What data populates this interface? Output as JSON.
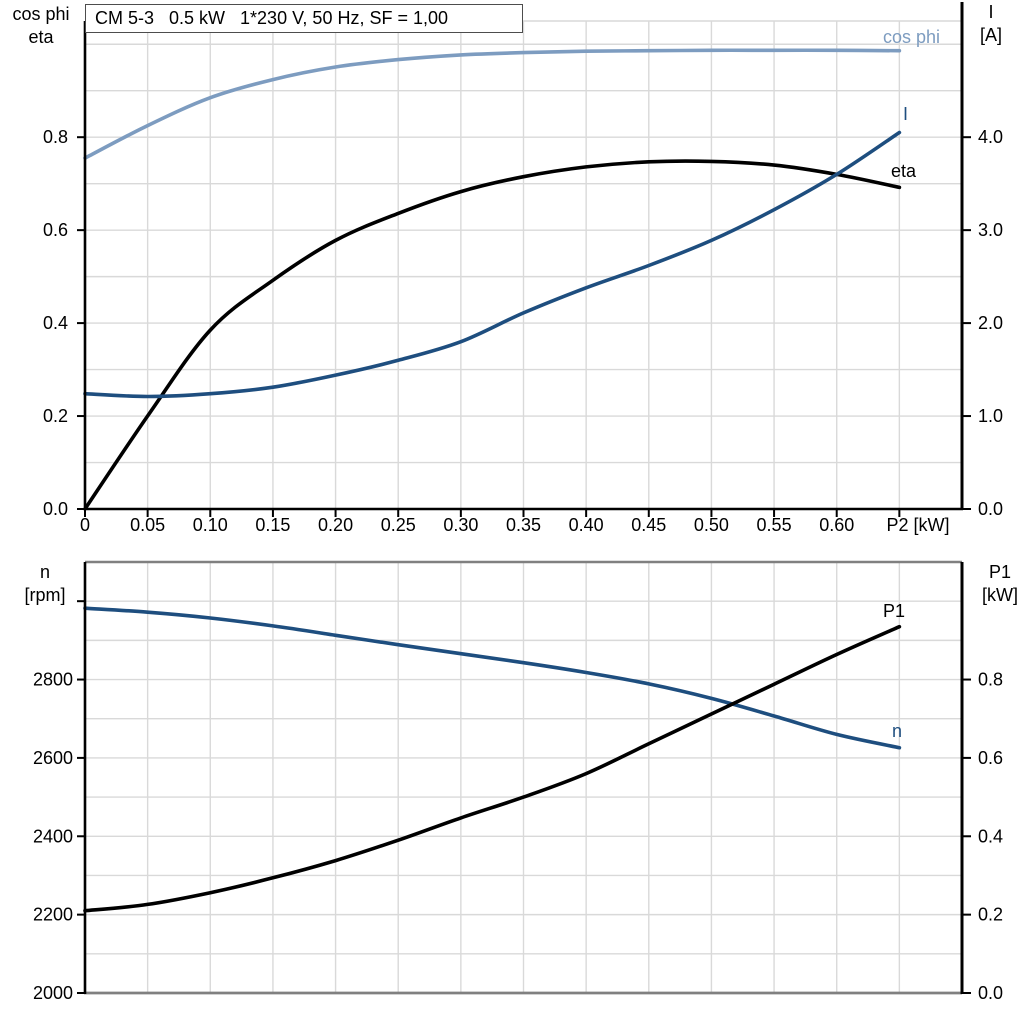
{
  "title": "CM 5-3   0.5 kW   1*230 V, 50 Hz, SF = 1,00",
  "colors": {
    "curve_dark_blue": "#1e4e7f",
    "curve_light_blue": "#7d9cc0",
    "curve_black": "#000000",
    "grid": "#d9d9d9",
    "plot_border": "#808080",
    "axis": "#000000",
    "title_border": "#4d4d4d",
    "text": "#000000"
  },
  "top_chart": {
    "left_header_line1": "cos phi",
    "left_header_line2": "eta",
    "right_header_line1": "I",
    "right_header_line2": "[A]",
    "x_axis_label": "P2 [kW]",
    "curve_label_cos_phi": "cos phi",
    "curve_label_current": "I",
    "curve_label_eta": "eta"
  },
  "bottom_chart": {
    "left_header_line1": "n",
    "left_header_line2": "[rpm]",
    "right_header_line1": "P1",
    "right_header_line2": "[kW]",
    "curve_label_p1": "P1",
    "curve_label_n": "n"
  },
  "chart_data": [
    {
      "type": "line",
      "title": "CM 5-3   0.5 kW   1*230 V, 50 Hz, SF = 1,00",
      "xlabel": "P2 [kW]",
      "x": [
        0,
        0.05,
        0.1,
        0.15,
        0.2,
        0.25,
        0.3,
        0.35,
        0.4,
        0.45,
        0.5,
        0.55,
        0.6,
        0.65
      ],
      "xlim": [
        0,
        0.7
      ],
      "x_grid_step": 0.05,
      "x_ticks": [
        {
          "v": 0,
          "label": "0"
        },
        {
          "v": 0.05,
          "label": "0.05"
        },
        {
          "v": 0.1,
          "label": "0.10"
        },
        {
          "v": 0.15,
          "label": "0.15"
        },
        {
          "v": 0.2,
          "label": "0.20"
        },
        {
          "v": 0.25,
          "label": "0.25"
        },
        {
          "v": 0.3,
          "label": "0.30"
        },
        {
          "v": 0.35,
          "label": "0.35"
        },
        {
          "v": 0.4,
          "label": "0.40"
        },
        {
          "v": 0.45,
          "label": "0.45"
        },
        {
          "v": 0.5,
          "label": "0.50"
        },
        {
          "v": 0.55,
          "label": "0.55"
        },
        {
          "v": 0.6,
          "label": "0.60"
        },
        {
          "v": 0.65,
          "label": ""
        }
      ],
      "left_axis": {
        "label": "cos phi / eta",
        "lim": [
          0,
          1.05
        ],
        "grid_step": 0.1,
        "ticks": [
          {
            "v": 0,
            "label": "0.0"
          },
          {
            "v": 0.2,
            "label": "0.2"
          },
          {
            "v": 0.4,
            "label": "0.4"
          },
          {
            "v": 0.6,
            "label": "0.6"
          },
          {
            "v": 0.8,
            "label": "0.8"
          }
        ]
      },
      "right_axis": {
        "label": "I [A]",
        "lim": [
          0,
          5.25
        ],
        "ticks": [
          {
            "v": 0,
            "label": "0.0"
          },
          {
            "v": 1,
            "label": "1.0"
          },
          {
            "v": 2,
            "label": "2.0"
          },
          {
            "v": 3,
            "label": "3.0"
          },
          {
            "v": 4,
            "label": "4.0"
          }
        ]
      },
      "series": [
        {
          "id": "cos_phi",
          "name": "cos phi",
          "axis": "left",
          "color": "curve_light_blue",
          "values": [
            0.755,
            0.825,
            0.885,
            0.924,
            0.951,
            0.967,
            0.977,
            0.982,
            0.985,
            0.986,
            0.987,
            0.987,
            0.987,
            0.986
          ]
        },
        {
          "id": "eta",
          "name": "eta",
          "axis": "left",
          "color": "curve_black",
          "values": [
            0.0,
            0.2,
            0.385,
            0.492,
            0.578,
            0.636,
            0.683,
            0.715,
            0.736,
            0.747,
            0.748,
            0.74,
            0.72,
            0.692
          ]
        },
        {
          "id": "current",
          "name": "I",
          "axis": "right",
          "color": "curve_dark_blue",
          "values": [
            1.24,
            1.21,
            1.24,
            1.31,
            1.44,
            1.6,
            1.8,
            2.11,
            2.38,
            2.62,
            2.89,
            3.22,
            3.6,
            4.05
          ]
        }
      ]
    },
    {
      "type": "line",
      "title": "",
      "xlabel": "",
      "x": [
        0,
        0.05,
        0.1,
        0.15,
        0.2,
        0.25,
        0.3,
        0.35,
        0.4,
        0.45,
        0.5,
        0.55,
        0.6,
        0.65
      ],
      "xlim": [
        0,
        0.7
      ],
      "x_grid_step": 0.05,
      "x_ticks": [],
      "left_axis": {
        "label": "n [rpm]",
        "lim": [
          2000,
          3100
        ],
        "grid_step": 100,
        "ticks": [
          {
            "v": 2000,
            "label": "2000"
          },
          {
            "v": 2200,
            "label": "2200"
          },
          {
            "v": 2400,
            "label": "2400"
          },
          {
            "v": 2600,
            "label": "2600"
          },
          {
            "v": 2800,
            "label": "2800"
          },
          {
            "v": 3000,
            "label": ""
          }
        ]
      },
      "right_axis": {
        "label": "P1 [kW]",
        "lim": [
          0,
          1.1
        ],
        "ticks": [
          {
            "v": 0,
            "label": "0.0"
          },
          {
            "v": 0.2,
            "label": "0.2"
          },
          {
            "v": 0.4,
            "label": "0.4"
          },
          {
            "v": 0.6,
            "label": "0.6"
          },
          {
            "v": 0.8,
            "label": "0.8"
          }
        ]
      },
      "series": [
        {
          "id": "n",
          "name": "n",
          "axis": "left",
          "color": "curve_dark_blue",
          "values": [
            2982,
            2972,
            2957,
            2937,
            2913,
            2889,
            2866,
            2843,
            2818,
            2789,
            2752,
            2707,
            2660,
            2626
          ]
        },
        {
          "id": "p1",
          "name": "P1",
          "axis": "right",
          "color": "curve_black",
          "values": [
            0.21,
            0.226,
            0.256,
            0.294,
            0.338,
            0.39,
            0.447,
            0.5,
            0.56,
            0.636,
            0.712,
            0.788,
            0.864,
            0.935
          ]
        }
      ]
    }
  ]
}
